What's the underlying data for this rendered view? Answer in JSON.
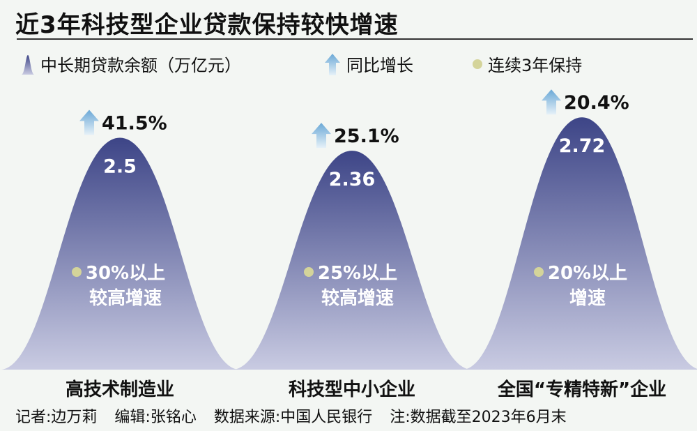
{
  "title": "近3年科技型企业贷款保持较快增速",
  "legend": [
    {
      "label": "中长期贷款余额（万亿元）",
      "icon": "bell-shape-icon"
    },
    {
      "label": "同比增长",
      "icon": "arrow-up-icon"
    },
    {
      "label": "连续3年保持",
      "icon": "dot-icon"
    }
  ],
  "colors": {
    "bell_top": "#3d4587",
    "bell_bottom": "#c9cbe2",
    "arrow": "#7fb6dc",
    "dot": "#d4d49a",
    "background": "#f3f6f3"
  },
  "chart_data": {
    "type": "bar",
    "title": "近3年科技型企业贷款保持较快增速",
    "categories": [
      "高技术制造业",
      "科技型中小企业",
      "全国“专精特新”企业"
    ],
    "series": [
      {
        "name": "中长期贷款余额（万亿元）",
        "values": [
          2.5,
          2.36,
          2.72
        ],
        "labels": [
          "2.5",
          "2.36",
          "2.72"
        ]
      },
      {
        "name": "同比增长",
        "values": [
          41.5,
          25.1,
          20.4
        ],
        "labels": [
          "41.5%",
          "25.1%",
          "20.4%"
        ]
      }
    ],
    "annotations": [
      {
        "line1": "30%以上",
        "line2": "较高增速"
      },
      {
        "line1": "25%以上",
        "line2": "较高增速"
      },
      {
        "line1": "20%以上",
        "line2": "增速"
      }
    ]
  },
  "footer": [
    "记者:边万莉",
    "编辑:张铭心",
    "数据来源:中国人民银行",
    "注:数据截至2023年6月末"
  ]
}
